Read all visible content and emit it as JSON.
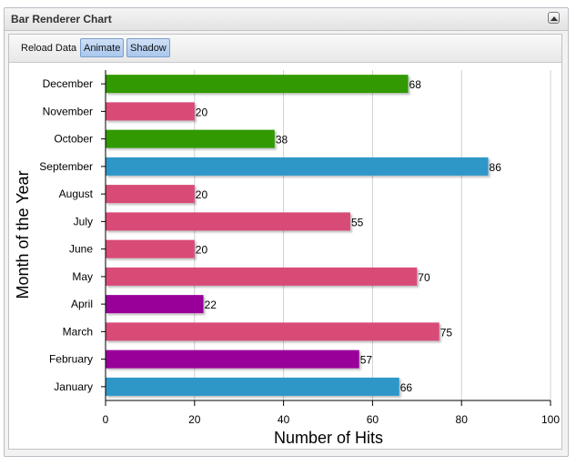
{
  "panel": {
    "title": "Bar Renderer Chart",
    "collapse_icon": "chevron-up-icon"
  },
  "toolbar": {
    "reload_label": "Reload Data",
    "animate_label": "Animate",
    "shadow_label": "Shadow"
  },
  "chart_data": {
    "type": "bar",
    "orientation": "horizontal",
    "categories": [
      "January",
      "February",
      "March",
      "April",
      "May",
      "June",
      "July",
      "August",
      "September",
      "October",
      "November",
      "December"
    ],
    "values": [
      66,
      57,
      75,
      22,
      70,
      20,
      55,
      20,
      86,
      38,
      20,
      68
    ],
    "colors": [
      "#2e97c8",
      "#990099",
      "#d84b77",
      "#990099",
      "#d84b77",
      "#d84b77",
      "#d84b77",
      "#d84b77",
      "#2e97c8",
      "#339900",
      "#d84b77",
      "#339900"
    ],
    "xlabel": "Number of Hits",
    "ylabel": "Month of the Year",
    "xlim": [
      0,
      100
    ],
    "xticks": [
      0,
      20,
      40,
      60,
      80,
      100
    ],
    "grid": true,
    "data_labels": true
  }
}
